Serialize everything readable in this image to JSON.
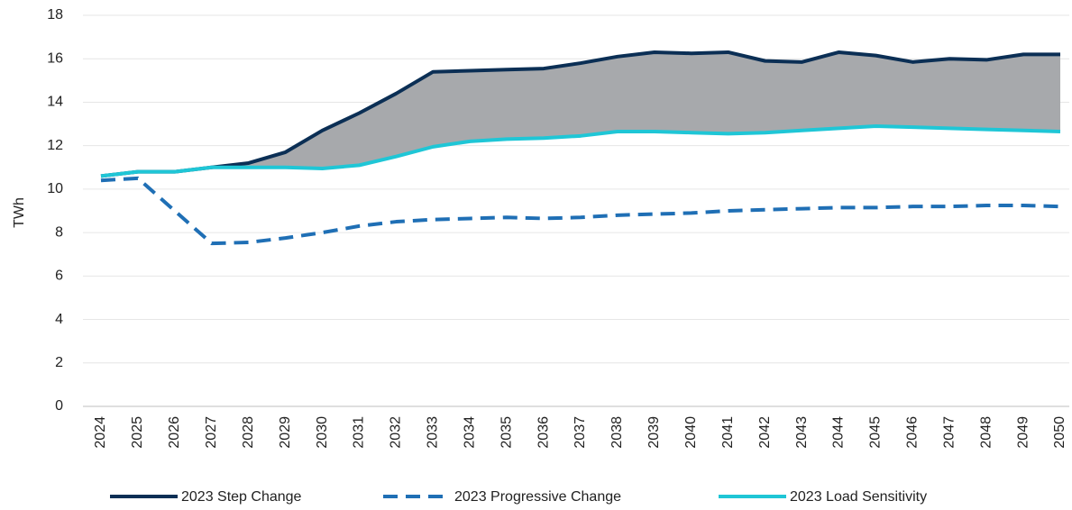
{
  "chart_data": {
    "type": "line",
    "y_label": "TWh",
    "categories": [
      "2024",
      "2025",
      "2026",
      "2027",
      "2028",
      "2029",
      "2030",
      "2031",
      "2032",
      "2033",
      "2034",
      "2035",
      "2036",
      "2037",
      "2038",
      "2039",
      "2040",
      "2041",
      "2042",
      "2043",
      "2044",
      "2045",
      "2046",
      "2047",
      "2048",
      "2049",
      "2050"
    ],
    "series": [
      {
        "name": "2023 Step Change",
        "color": "#0b2f55",
        "dashed": false,
        "values": [
          10.6,
          10.8,
          10.8,
          11.0,
          11.2,
          11.7,
          12.7,
          13.5,
          14.4,
          15.4,
          15.45,
          15.5,
          15.55,
          15.8,
          16.1,
          16.3,
          16.25,
          16.3,
          15.9,
          15.85,
          16.3,
          16.15,
          15.85,
          16.0,
          15.95,
          16.2,
          16.2
        ]
      },
      {
        "name": "2023 Progressive Change",
        "color": "#1f6fb5",
        "dashed": true,
        "values": [
          10.4,
          10.5,
          9.0,
          7.5,
          7.55,
          7.75,
          8.0,
          8.3,
          8.5,
          8.6,
          8.65,
          8.7,
          8.65,
          8.7,
          8.8,
          8.85,
          8.9,
          9.0,
          9.05,
          9.1,
          9.15,
          9.15,
          9.2,
          9.2,
          9.25,
          9.25,
          9.2
        ]
      },
      {
        "name": "2023 Load Sensitivity",
        "color": "#1fc6d6",
        "dashed": false,
        "values": [
          10.6,
          10.8,
          10.8,
          11.0,
          11.0,
          11.0,
          10.95,
          11.1,
          11.5,
          11.95,
          12.2,
          12.3,
          12.35,
          12.45,
          12.65,
          12.65,
          12.6,
          12.55,
          12.6,
          12.7,
          12.8,
          12.9,
          12.85,
          12.8,
          12.75,
          12.7,
          12.65
        ]
      }
    ],
    "band_color": "#a7a9ac",
    "ylim": [
      0,
      18
    ],
    "yticks": [
      0,
      2,
      4,
      6,
      8,
      10,
      12,
      14,
      16,
      18
    ],
    "grid": true,
    "legend": "bottom"
  }
}
